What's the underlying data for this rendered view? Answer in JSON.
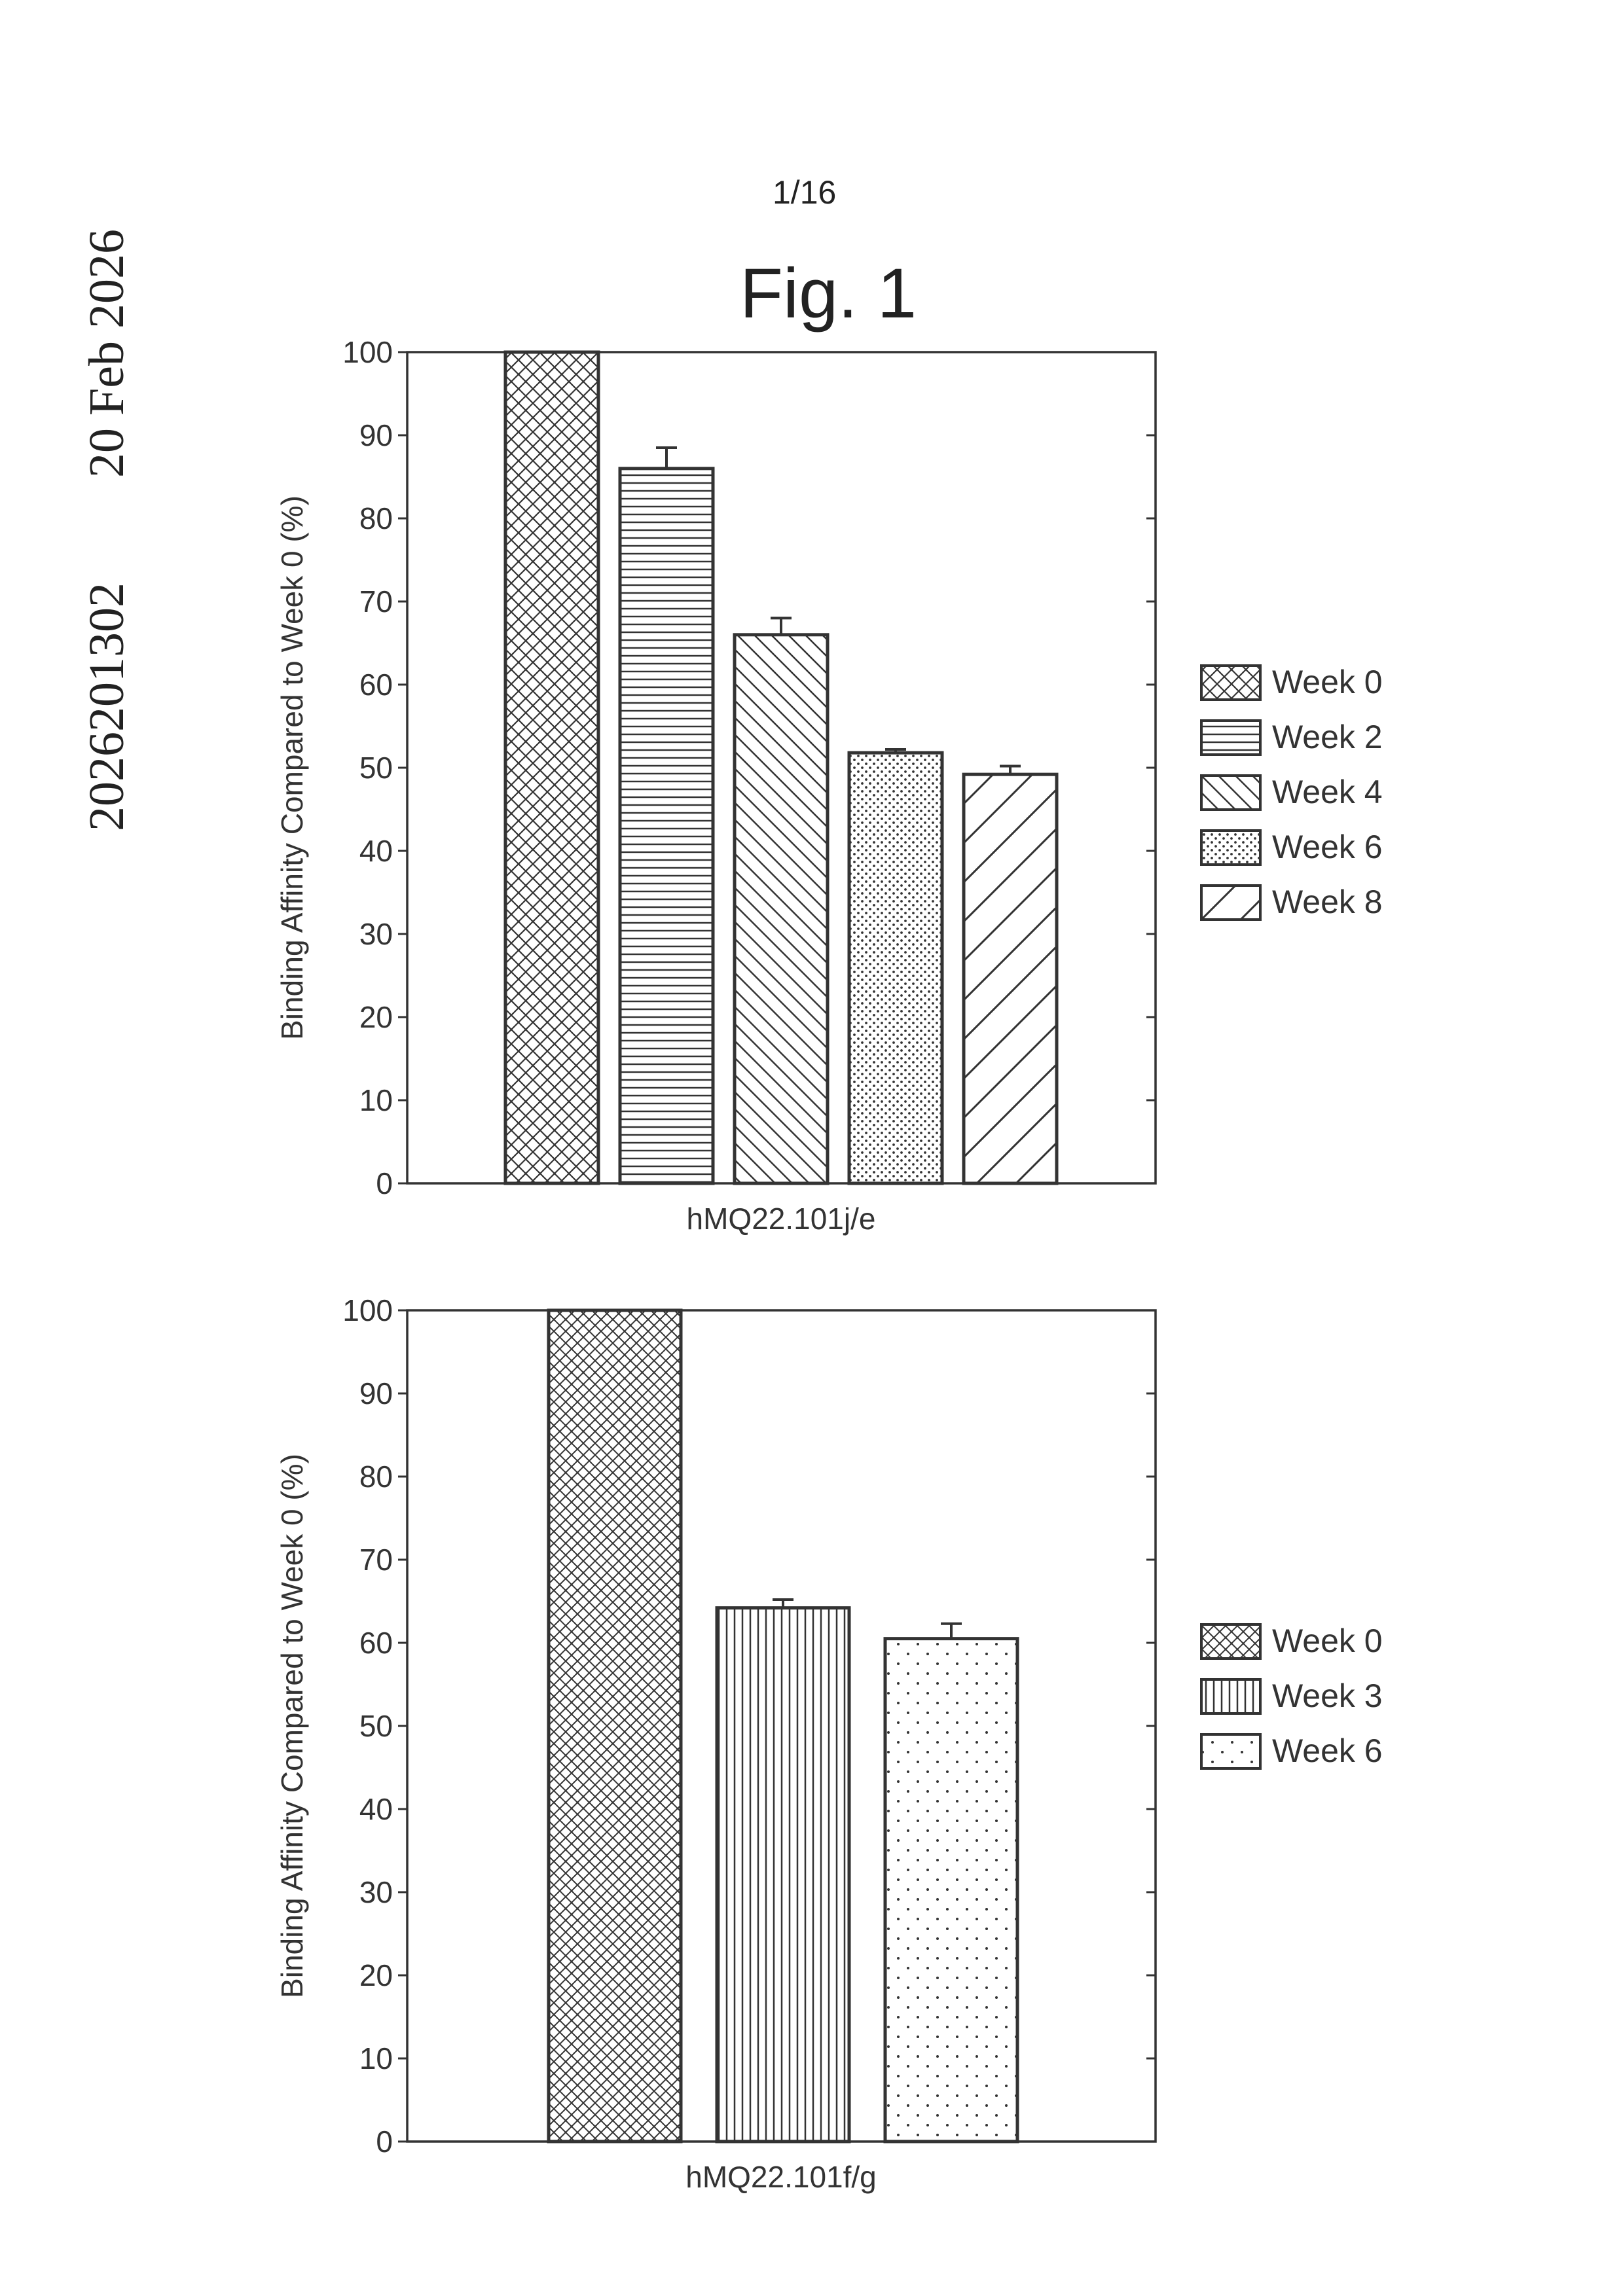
{
  "side_text": {
    "id": "2026201302",
    "date": "20 Feb 2026"
  },
  "page_number": "1/16",
  "figure_title": "Fig. 1",
  "colors": {
    "ink": "#333333",
    "background": "#ffffff"
  },
  "chart_data": [
    {
      "type": "bar",
      "title": "",
      "xlabel": "hMQ22.101j/e",
      "ylabel": "Binding Affinity Compared to Week 0 (%)",
      "ylim": [
        0,
        100
      ],
      "yticks": [
        0,
        10,
        20,
        30,
        40,
        50,
        60,
        70,
        80,
        90,
        100
      ],
      "legend_position": "right",
      "series": [
        {
          "name": "Week 0",
          "value": 100,
          "error": 0,
          "pattern": "crosshatch"
        },
        {
          "name": "Week 2",
          "value": 86,
          "error": 2.5,
          "pattern": "horizontal"
        },
        {
          "name": "Week 4",
          "value": 66,
          "error": 2,
          "pattern": "diag-down"
        },
        {
          "name": "Week 6",
          "value": 51.8,
          "error": 0.4,
          "pattern": "dots-dense"
        },
        {
          "name": "Week 8",
          "value": 49.2,
          "error": 1,
          "pattern": "diag-up"
        }
      ]
    },
    {
      "type": "bar",
      "title": "",
      "xlabel": "hMQ22.101f/g",
      "ylabel": "Binding Affinity Compared to Week 0 (%)",
      "ylim": [
        0,
        100
      ],
      "yticks": [
        0,
        10,
        20,
        30,
        40,
        50,
        60,
        70,
        80,
        90,
        100
      ],
      "legend_position": "right",
      "series": [
        {
          "name": "Week 0",
          "value": 100,
          "error": 0,
          "pattern": "crosshatch-fine"
        },
        {
          "name": "Week 3",
          "value": 64.2,
          "error": 1,
          "pattern": "vertical"
        },
        {
          "name": "Week 6",
          "value": 60.5,
          "error": 1.8,
          "pattern": "dots-sparse"
        }
      ]
    }
  ]
}
